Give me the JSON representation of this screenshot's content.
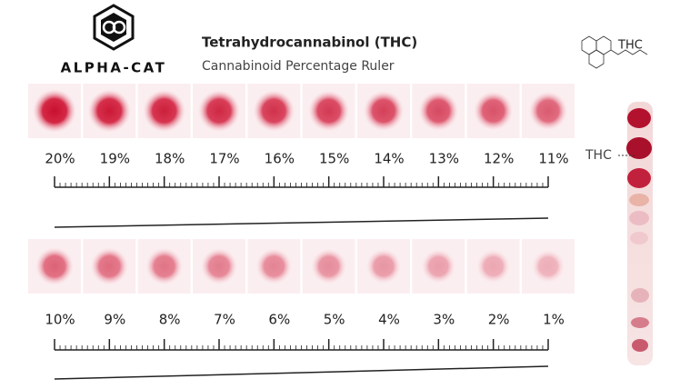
{
  "brand": {
    "name": "ALPHA-CAT"
  },
  "header": {
    "title": "Tetrahydrocannabinol (THC)",
    "subtitle": "Cannabinoid Percentage Ruler"
  },
  "molecule": {
    "label": "THC"
  },
  "rows": [
    {
      "labels": [
        "20%",
        "19%",
        "18%",
        "17%",
        "16%",
        "15%",
        "14%",
        "13%",
        "12%",
        "11%"
      ]
    },
    {
      "labels": [
        "10%",
        "9%",
        "8%",
        "7%",
        "6%",
        "5%",
        "4%",
        "3%",
        "2%",
        "1%"
      ]
    }
  ],
  "strip": {
    "label": "THC"
  }
}
